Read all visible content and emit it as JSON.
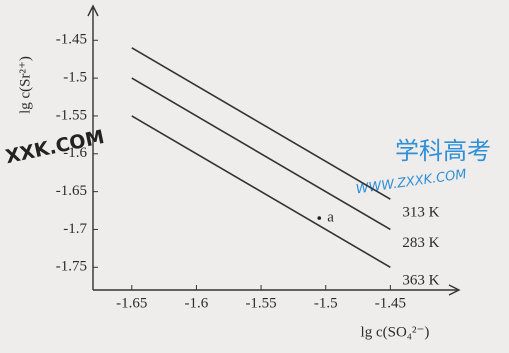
{
  "chart_data": {
    "type": "line",
    "x_label": "lg c(SO₄²⁻)",
    "y_label": "lg c(Sr²⁺)",
    "x": [
      -1.65,
      -1.45
    ],
    "series": [
      {
        "name": "313 K",
        "color": "#333333",
        "values": [
          -1.46,
          -1.66
        ]
      },
      {
        "name": "283 K",
        "color": "#333333",
        "values": [
          -1.5,
          -1.7
        ]
      },
      {
        "name": "363 K",
        "color": "#333333",
        "values": [
          -1.55,
          -1.75
        ]
      }
    ],
    "points": [
      {
        "label": "a",
        "x": -1.505,
        "y": -1.685
      }
    ],
    "xlim": [
      -1.68,
      -1.4
    ],
    "ylim": [
      -1.78,
      -1.41
    ],
    "xticks": [
      -1.65,
      -1.6,
      -1.55,
      -1.5,
      -1.45
    ],
    "yticks": [
      -1.45,
      -1.5,
      -1.55,
      -1.6,
      -1.65,
      -1.7,
      -1.75
    ],
    "watermarks": [
      "XXK.COM",
      "学科高考",
      "WWW.ZXXK.COM"
    ]
  }
}
